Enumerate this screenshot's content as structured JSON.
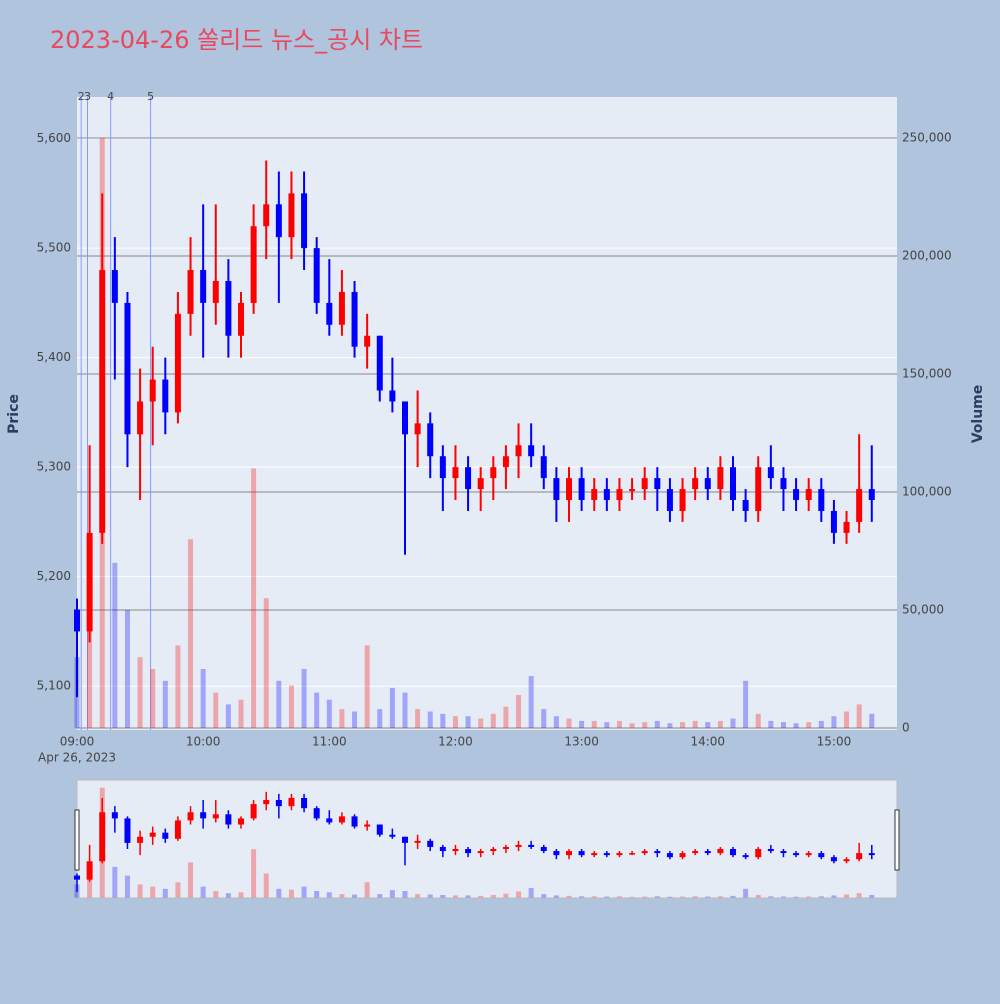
{
  "chart_data": {
    "type": "candlestick",
    "title": "2023-04-26 쏠리드 뉴스_공시 차트",
    "ylabel": "Price",
    "y2label": "Volume",
    "xdate_label": "Apr 26, 2023",
    "increasing_color": "#ff0000",
    "decreasing_color": "#0000ff",
    "xlim": [
      "09:00",
      "15:30"
    ],
    "xticks": [
      "09:00",
      "10:00",
      "11:00",
      "12:00",
      "13:00",
      "14:00",
      "15:00"
    ],
    "ylim": [
      5060,
      5638
    ],
    "yticks": [
      {
        "value": 5100,
        "label": "5,100"
      },
      {
        "value": 5200,
        "label": "5,200"
      },
      {
        "value": 5300,
        "label": "5,300"
      },
      {
        "value": 5400,
        "label": "5,400"
      },
      {
        "value": 5500,
        "label": "5,500"
      },
      {
        "value": 5600,
        "label": "5,600"
      }
    ],
    "y2lim": [
      -850,
      267400
    ],
    "y2ticks": [
      0,
      {
        "value": 50000,
        "label": "50,000"
      },
      {
        "value": 100000,
        "label": "100,000"
      },
      {
        "value": 150000,
        "label": "150,000"
      },
      {
        "value": 200000,
        "label": "200,000"
      },
      {
        "value": 250000,
        "label": "250,000"
      }
    ],
    "news": [
      {
        "label": "2",
        "x": "09:02"
      },
      {
        "label": "3",
        "x": "09:05"
      },
      {
        "label": "4",
        "x": "09:16"
      },
      {
        "label": "5",
        "x": "09:35"
      }
    ],
    "x": [
      "09:00",
      "09:06",
      "09:12",
      "09:18",
      "09:24",
      "09:30",
      "09:36",
      "09:42",
      "09:48",
      "09:54",
      "10:00",
      "10:06",
      "10:12",
      "10:18",
      "10:24",
      "10:30",
      "10:36",
      "10:42",
      "10:48",
      "10:54",
      "11:00",
      "11:06",
      "11:12",
      "11:18",
      "11:24",
      "11:30",
      "11:36",
      "11:42",
      "11:48",
      "11:54",
      "12:00",
      "12:06",
      "12:12",
      "12:18",
      "12:24",
      "12:30",
      "12:36",
      "12:42",
      "12:48",
      "12:54",
      "13:00",
      "13:06",
      "13:12",
      "13:18",
      "13:24",
      "13:30",
      "13:36",
      "13:42",
      "13:48",
      "13:54",
      "14:00",
      "14:06",
      "14:12",
      "14:18",
      "14:24",
      "14:30",
      "14:36",
      "14:42",
      "14:48",
      "14:54",
      "15:00",
      "15:06",
      "15:12",
      "15:18"
    ],
    "open": [
      5170,
      5150,
      5240,
      5480,
      5450,
      5330,
      5360,
      5380,
      5350,
      5440,
      5480,
      5450,
      5470,
      5420,
      5450,
      5520,
      5540,
      5510,
      5550,
      5500,
      5450,
      5430,
      5460,
      5410,
      5420,
      5370,
      5360,
      5330,
      5340,
      5310,
      5290,
      5300,
      5280,
      5290,
      5300,
      5310,
      5320,
      5310,
      5290,
      5270,
      5290,
      5270,
      5280,
      5270,
      5280,
      5280,
      5290,
      5280,
      5260,
      5280,
      5290,
      5280,
      5300,
      5270,
      5260,
      5300,
      5290,
      5280,
      5270,
      5280,
      5260,
      5240,
      5250,
      5280
    ],
    "high": [
      5180,
      5320,
      5550,
      5510,
      5460,
      5390,
      5410,
      5400,
      5460,
      5510,
      5540,
      5540,
      5490,
      5460,
      5540,
      5580,
      5570,
      5570,
      5570,
      5510,
      5490,
      5480,
      5470,
      5440,
      5420,
      5400,
      5360,
      5370,
      5350,
      5320,
      5320,
      5310,
      5300,
      5310,
      5320,
      5340,
      5340,
      5320,
      5300,
      5300,
      5300,
      5290,
      5290,
      5290,
      5290,
      5300,
      5300,
      5290,
      5290,
      5300,
      5300,
      5310,
      5310,
      5280,
      5310,
      5320,
      5300,
      5290,
      5290,
      5290,
      5270,
      5260,
      5330,
      5320
    ],
    "low": [
      5090,
      5140,
      5230,
      5380,
      5300,
      5270,
      5320,
      5330,
      5340,
      5420,
      5400,
      5430,
      5400,
      5400,
      5440,
      5490,
      5450,
      5490,
      5480,
      5440,
      5420,
      5420,
      5400,
      5390,
      5360,
      5350,
      5220,
      5300,
      5290,
      5260,
      5270,
      5260,
      5260,
      5270,
      5280,
      5290,
      5300,
      5280,
      5250,
      5250,
      5260,
      5260,
      5260,
      5260,
      5270,
      5270,
      5260,
      5250,
      5250,
      5270,
      5270,
      5270,
      5260,
      5250,
      5250,
      5280,
      5260,
      5260,
      5260,
      5250,
      5230,
      5230,
      5240,
      5250
    ],
    "close": [
      5150,
      5240,
      5480,
      5450,
      5330,
      5360,
      5380,
      5350,
      5440,
      5480,
      5450,
      5470,
      5420,
      5450,
      5520,
      5540,
      5510,
      5550,
      5500,
      5450,
      5430,
      5460,
      5410,
      5420,
      5370,
      5360,
      5330,
      5340,
      5310,
      5290,
      5300,
      5280,
      5290,
      5300,
      5310,
      5320,
      5310,
      5290,
      5270,
      5290,
      5270,
      5280,
      5270,
      5280,
      5280,
      5290,
      5280,
      5260,
      5280,
      5290,
      5280,
      5300,
      5270,
      5260,
      5300,
      5290,
      5280,
      5270,
      5280,
      5260,
      5240,
      5250,
      5280,
      5270
    ],
    "volume": [
      30000,
      80000,
      250000,
      70000,
      50000,
      30000,
      25000,
      20000,
      35000,
      80000,
      25000,
      15000,
      10000,
      12000,
      110000,
      55000,
      20000,
      18000,
      25000,
      15000,
      12000,
      8000,
      7000,
      35000,
      8000,
      17000,
      15000,
      8000,
      7000,
      6000,
      5000,
      5000,
      4000,
      6000,
      9000,
      14000,
      22000,
      8000,
      5000,
      4000,
      3000,
      3000,
      2500,
      3000,
      2000,
      2500,
      3000,
      2000,
      2500,
      3000,
      2500,
      3000,
      4000,
      20000,
      6000,
      3000,
      2500,
      2000,
      2500,
      3000,
      5000,
      7000,
      10000,
      6000
    ]
  }
}
